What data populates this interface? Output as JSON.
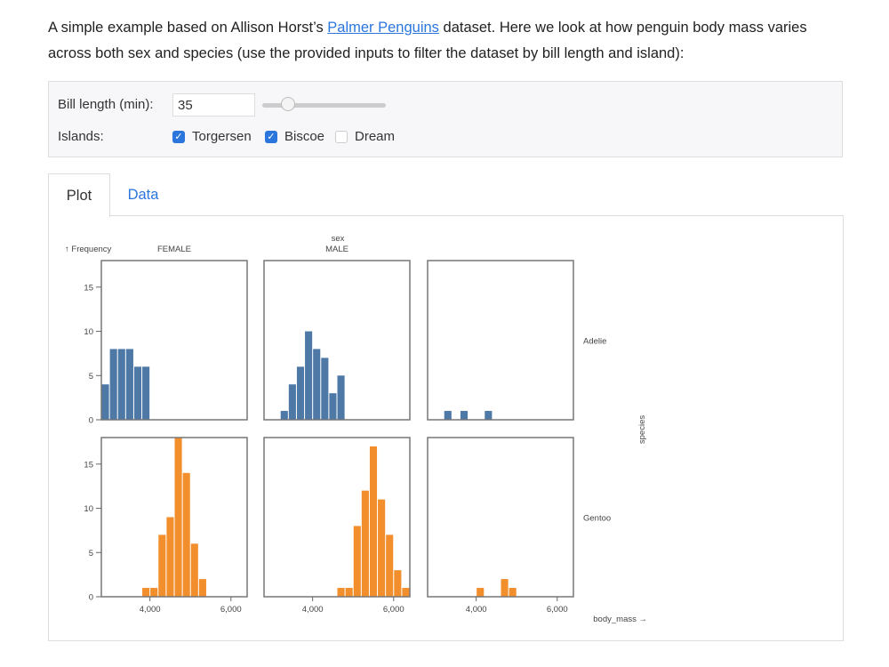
{
  "intro": {
    "before_link": "A simple example based on Allison Horst’s ",
    "link_text": "Palmer Penguins",
    "after_link": " dataset. Here we look at how penguin body mass varies across both sex and species (use the provided inputs to filter the dataset by bill length and island):"
  },
  "controls": {
    "bill_length_label": "Bill length (min):",
    "bill_length_value": "35",
    "slider_fraction": 0.21,
    "islands_label": "Islands:",
    "islands": [
      {
        "label": "Torgersen",
        "checked": true
      },
      {
        "label": "Biscoe",
        "checked": true
      },
      {
        "label": "Dream",
        "checked": false
      }
    ]
  },
  "tabs": [
    {
      "label": "Plot",
      "active": true
    },
    {
      "label": "Data",
      "active": false
    }
  ],
  "colors": {
    "Adelie": "#4e79a7",
    "Gentoo": "#f28e2c",
    "link": "#2a76dd"
  },
  "chart_data": {
    "type": "bar",
    "ylabel": "↑ Frequency",
    "xlabel": "body_mass →",
    "fx_label": "sex",
    "fy_label": "species",
    "columns": [
      "FEMALE",
      "MALE",
      ""
    ],
    "rows": [
      "Adelie",
      "Gentoo"
    ],
    "xlim": [
      2800,
      6400
    ],
    "ylim": [
      0,
      18
    ],
    "xticks": [
      4000,
      6000
    ],
    "xtick_labels": [
      "4,000",
      "6,000"
    ],
    "yticks": [
      0,
      5,
      10,
      15
    ],
    "bin_width": 200,
    "facets": [
      {
        "species": "Adelie",
        "sex": "FEMALE",
        "bins": [
          [
            2800,
            4
          ],
          [
            3000,
            8
          ],
          [
            3200,
            8
          ],
          [
            3400,
            8
          ],
          [
            3600,
            6
          ],
          [
            3800,
            6
          ]
        ]
      },
      {
        "species": "Adelie",
        "sex": "MALE",
        "bins": [
          [
            3200,
            1
          ],
          [
            3400,
            4
          ],
          [
            3600,
            6
          ],
          [
            3800,
            10
          ],
          [
            4000,
            8
          ],
          [
            4200,
            7
          ],
          [
            4400,
            3
          ],
          [
            4600,
            5
          ]
        ]
      },
      {
        "species": "Adelie",
        "sex": "",
        "bins": [
          [
            3200,
            1
          ],
          [
            3600,
            1
          ],
          [
            4200,
            1
          ]
        ]
      },
      {
        "species": "Gentoo",
        "sex": "FEMALE",
        "bins": [
          [
            3800,
            1
          ],
          [
            4000,
            1
          ],
          [
            4200,
            7
          ],
          [
            4400,
            9
          ],
          [
            4600,
            18
          ],
          [
            4800,
            14
          ],
          [
            5000,
            6
          ],
          [
            5200,
            2
          ]
        ]
      },
      {
        "species": "Gentoo",
        "sex": "MALE",
        "bins": [
          [
            4600,
            1
          ],
          [
            4800,
            1
          ],
          [
            5000,
            8
          ],
          [
            5200,
            12
          ],
          [
            5400,
            17
          ],
          [
            5600,
            11
          ],
          [
            5800,
            7
          ],
          [
            6000,
            3
          ],
          [
            6200,
            1
          ]
        ]
      },
      {
        "species": "Gentoo",
        "sex": "",
        "bins": [
          [
            4000,
            1
          ],
          [
            4600,
            2
          ],
          [
            4800,
            1
          ]
        ]
      }
    ]
  }
}
